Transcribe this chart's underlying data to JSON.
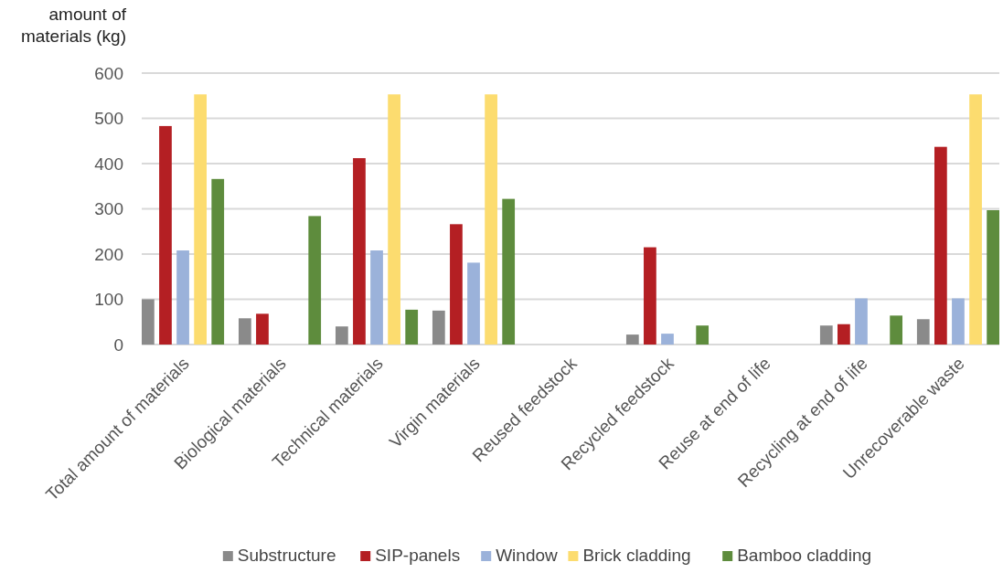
{
  "chart_data": {
    "type": "bar",
    "ylabel": "amount of materials (kg)",
    "categories": [
      "Total amount of materials",
      "Biological materials",
      "Technical materials",
      "Virgin materials",
      "Reused feedstock",
      "Recycled feedstock",
      "Reuse at end of life",
      "Recycling at end of life",
      "Unrecoverable waste"
    ],
    "series": [
      {
        "name": "Substructure",
        "color": "#8a8a8a",
        "values": [
          100,
          58,
          40,
          75,
          0,
          22,
          0,
          42,
          56
        ]
      },
      {
        "name": "SIP-panels",
        "color": "#b41f23",
        "values": [
          483,
          68,
          412,
          266,
          0,
          215,
          0,
          45,
          437
        ]
      },
      {
        "name": "Window",
        "color": "#9bb2da",
        "values": [
          208,
          0,
          208,
          181,
          0,
          24,
          0,
          102,
          102
        ]
      },
      {
        "name": "Brick cladding",
        "color": "#fcdc6f",
        "values": [
          553,
          0,
          553,
          553,
          0,
          0,
          0,
          0,
          553
        ]
      },
      {
        "name": "Bamboo cladding",
        "color": "#5e8c3d",
        "values": [
          366,
          284,
          77,
          322,
          0,
          42,
          0,
          64,
          297
        ]
      }
    ],
    "ylim": [
      0,
      600
    ],
    "yticks": [
      0,
      100,
      200,
      300,
      400,
      500,
      600
    ],
    "grid": "y",
    "legend": "bottom"
  }
}
